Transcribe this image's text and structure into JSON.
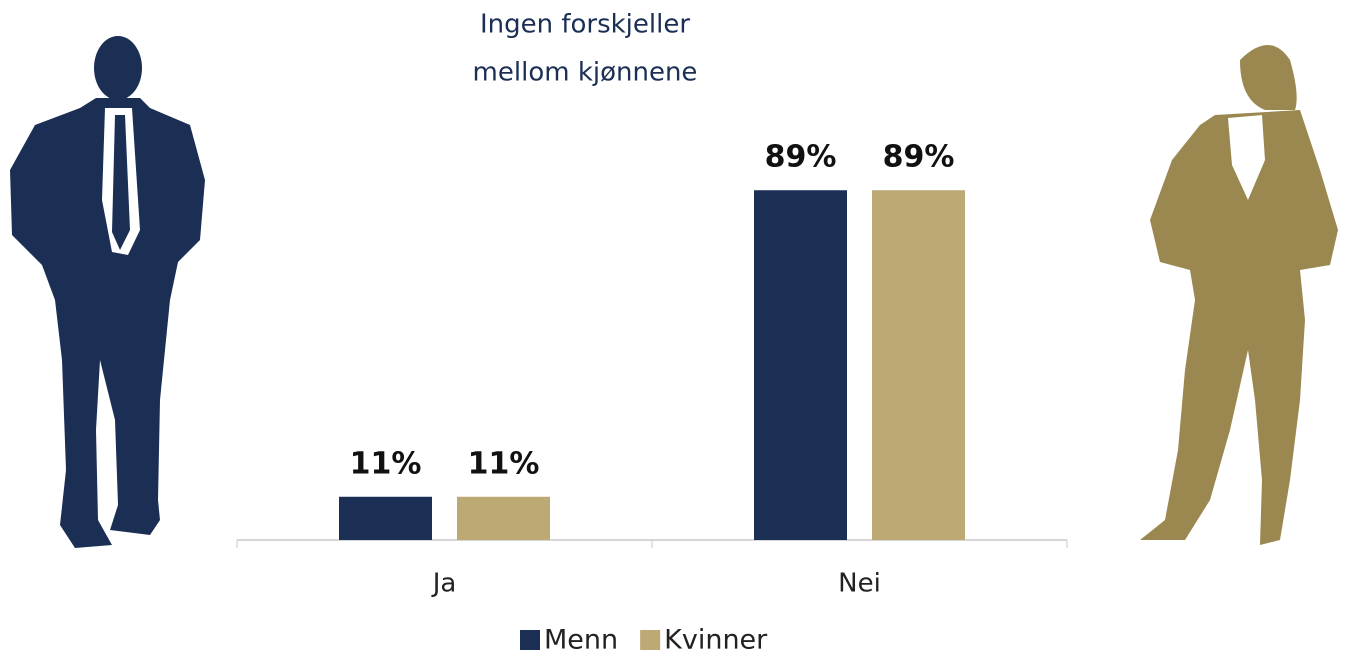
{
  "chart_data": {
    "type": "bar",
    "title": [
      "Ingen forskjeller",
      "mellom kjønnene"
    ],
    "categories": [
      "Ja",
      "Nei"
    ],
    "series": [
      {
        "name": "Menn",
        "color": "#1b2f55",
        "values": [
          11,
          89
        ],
        "value_labels": [
          "11%",
          "89%"
        ]
      },
      {
        "name": "Kvinner",
        "color": "#bda974",
        "values": [
          11,
          89
        ],
        "value_labels": [
          "11%",
          "89%"
        ]
      }
    ],
    "legend": "bottom"
  }
}
